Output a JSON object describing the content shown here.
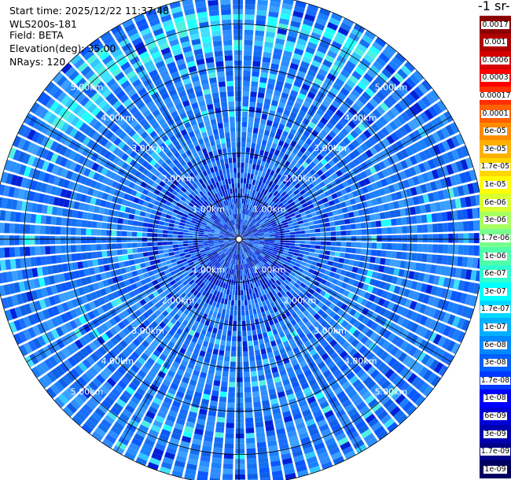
{
  "info": {
    "start_time": "Start time: 2025/12/22 11:37:48",
    "instrument": "WLS200s-181",
    "field": "Field: BETA",
    "elevation": "Elevation(deg): 35.00",
    "nrays": "NRays: 120"
  },
  "colorbar": {
    "title": "-1 sr-",
    "labels": [
      "0.0017",
      "0.001",
      "0.0006",
      "0.0003",
      "0.00017",
      "0.0001",
      "6e-05",
      "3e-05",
      "1.7e-05",
      "1e-05",
      "6e-06",
      "3e-06",
      "1.7e-06",
      "1e-06",
      "6e-07",
      "3e-07",
      "1.7e-07",
      "1e-07",
      "6e-08",
      "3e-08",
      "1.7e-08",
      "1e-08",
      "6e-09",
      "3e-09",
      "1.7e-09",
      "1e-09"
    ],
    "colors": [
      "#8b0000",
      "#b00000",
      "#d60000",
      "#ff0000",
      "#ff3000",
      "#ff6000",
      "#ff8c00",
      "#ffb000",
      "#ffd700",
      "#ffff00",
      "#d8ff30",
      "#a8ff60",
      "#78ff8c",
      "#50ffaa",
      "#30ffd0",
      "#00ffff",
      "#00d8ff",
      "#00b0ff",
      "#0088ff",
      "#0060ff",
      "#0038ff",
      "#0000ff",
      "#0000d8",
      "#0000b0",
      "#000088",
      "#000060"
    ]
  },
  "chart_data": {
    "type": "heatmap",
    "projection": "polar-ppi",
    "field": "BETA",
    "elevation_deg": 35.0,
    "n_rays": 120,
    "range_rings_km": [
      1,
      2,
      3,
      4,
      5
    ],
    "ring_labels": [
      "1.00km",
      "2.00km",
      "3.00km",
      "4.00km",
      "5.00km"
    ],
    "max_range_km": 5.7,
    "azimuth_lines_deg": [
      0,
      30,
      60,
      90,
      120,
      150,
      180,
      210,
      240,
      270,
      300,
      330
    ],
    "dominant_value_range": [
      1e-08,
      1e-07
    ],
    "colorscale": "jet",
    "grid": true
  }
}
